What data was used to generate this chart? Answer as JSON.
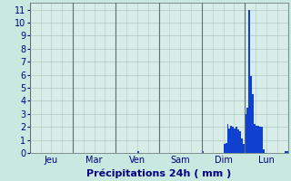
{
  "title": "Précipitations 24h ( mm )",
  "ylim": [
    0,
    11.5
  ],
  "yticks": [
    0,
    1,
    2,
    3,
    4,
    5,
    6,
    7,
    8,
    9,
    10,
    11
  ],
  "background_color": "#c8e8e0",
  "plot_bg_color": "#d8ece8",
  "bar_color": "#1040d0",
  "grid_color": "#b0c8c0",
  "day_labels": [
    "Jeu",
    "Mar",
    "Ven",
    "Sam",
    "Dim",
    "Lun"
  ],
  "n_bars": 144,
  "bar_values": [
    0,
    0,
    0,
    0,
    0,
    0,
    0,
    0,
    0,
    0,
    0,
    0,
    0,
    0,
    0,
    0,
    0,
    0,
    0,
    0,
    0,
    0,
    0,
    0,
    0,
    0,
    0,
    0,
    0,
    0,
    0,
    0,
    0,
    0,
    0,
    0,
    0,
    0,
    0,
    0,
    0,
    0,
    0,
    0,
    0,
    0,
    0,
    0,
    0,
    0,
    0,
    0,
    0,
    0,
    0,
    0,
    0,
    0,
    0,
    0,
    0.15,
    0,
    0,
    0,
    0,
    0,
    0,
    0,
    0,
    0,
    0,
    0,
    0,
    0,
    0,
    0,
    0,
    0,
    0,
    0,
    0,
    0,
    0,
    0,
    0,
    0,
    0,
    0,
    0,
    0,
    0,
    0,
    0,
    0,
    0,
    0,
    0.15,
    0,
    0,
    0,
    0,
    0,
    0,
    0,
    0,
    0,
    0,
    0,
    0.7,
    0.8,
    2.2,
    1.9,
    2.1,
    2.0,
    1.9,
    2.0,
    1.8,
    1.7,
    1.1,
    0.7,
    3.0,
    3.5,
    11.0,
    5.9,
    4.5,
    2.2,
    2.1,
    2.1,
    2.0,
    2.0,
    0.3,
    0,
    0,
    0,
    0,
    0,
    0,
    0,
    0,
    0,
    0,
    0,
    0.15,
    0.15
  ],
  "day_tick_positions": [
    0,
    24,
    48,
    72,
    96,
    120,
    144
  ],
  "day_centers": [
    12,
    36,
    60,
    84,
    108,
    132
  ],
  "title_fontsize": 8,
  "tick_fontsize": 7,
  "title_color": "#000080",
  "tick_color": "#000080",
  "figsize": [
    3.2,
    2.0
  ],
  "dpi": 100
}
